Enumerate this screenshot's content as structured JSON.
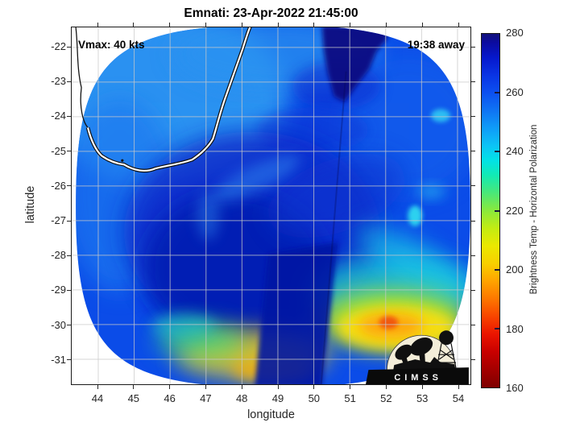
{
  "chart_data": {
    "type": "heatmap",
    "title": "Emnati: 23-Apr-2022 21:45:00",
    "xlabel": "longitude",
    "ylabel": "latitude",
    "xlim": [
      43.27,
      54.37
    ],
    "ylim": [
      -31.72,
      -21.42
    ],
    "xticks": [
      44,
      45,
      46,
      47,
      48,
      49,
      50,
      51,
      52,
      53,
      54
    ],
    "yticks": [
      -22,
      -23,
      -24,
      -25,
      -26,
      -27,
      -28,
      -29,
      -30,
      -31
    ],
    "grid": true,
    "annotations": [
      {
        "text": "Vmax: 40 kts",
        "position": "top-left"
      },
      {
        "text": "19:38 away",
        "position": "top-right"
      }
    ],
    "colorbar": {
      "label": "Brightness Temp - Horizontal Polarization",
      "min": 160,
      "max": 280,
      "ticks": [
        160,
        180,
        200,
        220,
        240,
        260,
        280
      ],
      "stops": [
        {
          "value": 160,
          "color": "#7e0000"
        },
        {
          "value": 166,
          "color": "#a30000"
        },
        {
          "value": 172,
          "color": "#c80000"
        },
        {
          "value": 178,
          "color": "#ea1400"
        },
        {
          "value": 184,
          "color": "#f84400"
        },
        {
          "value": 190,
          "color": "#fd7600"
        },
        {
          "value": 196,
          "color": "#ffa300"
        },
        {
          "value": 202,
          "color": "#f8cf00"
        },
        {
          "value": 208,
          "color": "#ebe800"
        },
        {
          "value": 214,
          "color": "#c3ec12"
        },
        {
          "value": 220,
          "color": "#8ae93c"
        },
        {
          "value": 226,
          "color": "#4ae878"
        },
        {
          "value": 232,
          "color": "#12eab4"
        },
        {
          "value": 237,
          "color": "#02e2e6"
        },
        {
          "value": 242,
          "color": "#0cc4f6"
        },
        {
          "value": 248,
          "color": "#0f9cf8"
        },
        {
          "value": 254,
          "color": "#0f74f4"
        },
        {
          "value": 260,
          "color": "#0c50f0"
        },
        {
          "value": 266,
          "color": "#0a34e4"
        },
        {
          "value": 272,
          "color": "#0618cc"
        },
        {
          "value": 277,
          "color": "#0b0ba0"
        },
        {
          "value": 280,
          "color": "#12127c"
        }
      ]
    },
    "swath": {
      "shape": "circular sensor swath, white background outside",
      "center_lon": 48.9,
      "center_lat": -26.6,
      "half_width_lon": 5.5,
      "half_height_lat": 5.2,
      "base_value_K": 255
    },
    "features": [
      {
        "name": "very-cold-navy-patch",
        "lon": 50.1,
        "lat": -22.6,
        "value_K": 279
      },
      {
        "name": "storm-core-dark-blue",
        "lon": 48.3,
        "lat": -28.3,
        "value_K": 266
      },
      {
        "name": "dark-blue-band-bottom-center",
        "lon": 49.0,
        "lat": -30.8,
        "value_K": 268
      },
      {
        "name": "light-blue-region-northwest",
        "lon": 45.5,
        "lat": -23.5,
        "value_K": 247
      },
      {
        "name": "cyan-arc-southeast",
        "lon": 51.6,
        "lat": -29.6,
        "value_K": 235
      },
      {
        "name": "yellow-orange-band-south",
        "lon": 50.9,
        "lat": -30.5,
        "value_K": 200
      },
      {
        "name": "red-orange-spot-south",
        "lon": 50.7,
        "lat": -30.3,
        "value_K": 186
      },
      {
        "name": "yellow-arc-southwest",
        "lon": 47.2,
        "lat": -31.1,
        "value_K": 203
      }
    ],
    "coastline": "Madagascar (white line with black outline over data, thin black line over background)",
    "logo_text": "CIMSS"
  }
}
